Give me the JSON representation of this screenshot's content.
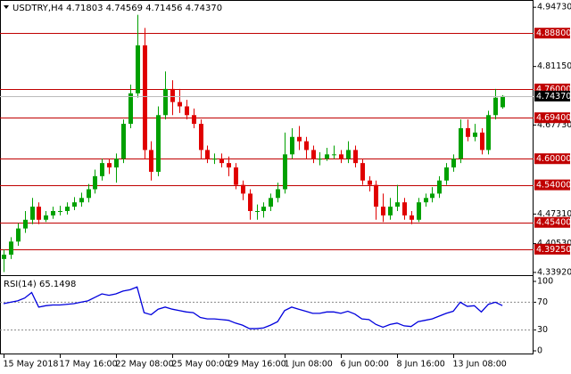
{
  "chart_data": {
    "type": "candlestick",
    "title": "USDTRY,H4  4.71803 4.74569 4.71456 4.74370",
    "categories": [
      "15 May 2018",
      null,
      null,
      null,
      null,
      null,
      null,
      null,
      "17 May 16:00",
      null,
      null,
      null,
      null,
      null,
      null,
      null,
      "22 May 08:00",
      null,
      null,
      null,
      null,
      null,
      null,
      null,
      "25 May 00:00",
      null,
      null,
      null,
      null,
      null,
      null,
      null,
      "29 May 16:00",
      null,
      null,
      null,
      null,
      null,
      null,
      null,
      "1 Jun 08:00",
      null,
      null,
      null,
      null,
      null,
      null,
      null,
      "6 Jun 00:00",
      null,
      null,
      null,
      null,
      null,
      null,
      null,
      "8 Jun 16:00",
      null,
      null,
      null,
      null,
      null,
      null,
      null,
      "13 Jun 08:00",
      null,
      null,
      null,
      null,
      null,
      null,
      null
    ],
    "open": [
      4.37,
      4.38,
      4.41,
      4.44,
      4.46,
      4.49,
      4.46,
      4.47,
      4.48,
      4.48,
      4.49,
      4.5,
      4.51,
      4.53,
      4.56,
      4.59,
      4.58,
      4.6,
      4.68,
      4.75,
      4.86,
      4.62,
      4.57,
      4.7,
      4.76,
      4.73,
      4.72,
      4.7,
      4.68,
      4.62,
      4.6,
      4.6,
      4.59,
      4.58,
      4.54,
      4.52,
      4.48,
      4.48,
      4.49,
      4.51,
      4.53,
      4.61,
      4.65,
      4.64,
      4.62,
      4.6,
      4.6,
      4.61,
      4.61,
      4.6,
      4.62,
      4.59,
      4.55,
      4.54,
      4.49,
      4.47,
      4.49,
      4.5,
      4.47,
      4.46,
      4.5,
      4.51,
      4.52,
      4.55,
      4.58,
      4.6,
      4.67,
      4.65,
      4.66,
      4.62,
      4.7,
      4.71803
    ],
    "high": [
      4.392,
      4.42,
      4.452,
      4.48,
      4.51,
      4.5,
      4.48,
      4.49,
      4.492,
      4.5,
      4.512,
      4.522,
      4.542,
      4.575,
      4.6,
      4.6,
      4.612,
      4.69,
      4.77,
      4.93,
      4.9,
      4.64,
      4.72,
      4.8,
      4.78,
      4.76,
      4.735,
      4.715,
      4.69,
      4.63,
      4.612,
      4.612,
      4.605,
      4.59,
      4.55,
      4.53,
      4.495,
      4.5,
      4.52,
      4.545,
      4.66,
      4.67,
      4.675,
      4.65,
      4.63,
      4.615,
      4.625,
      4.63,
      4.62,
      4.64,
      4.63,
      4.6,
      4.56,
      4.55,
      4.52,
      4.51,
      4.54,
      4.51,
      4.48,
      4.51,
      4.52,
      4.535,
      4.56,
      4.59,
      4.61,
      4.69,
      4.69,
      4.68,
      4.67,
      4.71,
      4.76,
      4.74569
    ],
    "low": [
      4.34,
      4.37,
      4.4,
      4.43,
      4.45,
      4.45,
      4.455,
      4.462,
      4.47,
      4.472,
      4.482,
      4.49,
      4.5,
      4.52,
      4.55,
      4.565,
      4.545,
      4.59,
      4.67,
      4.74,
      4.6,
      4.55,
      4.56,
      4.69,
      4.7,
      4.705,
      4.69,
      4.67,
      4.6,
      4.59,
      4.588,
      4.58,
      4.56,
      4.53,
      4.505,
      4.46,
      4.46,
      4.465,
      4.48,
      4.5,
      4.52,
      4.6,
      4.62,
      4.6,
      4.59,
      4.585,
      4.595,
      4.6,
      4.59,
      4.59,
      4.58,
      4.54,
      4.525,
      4.46,
      4.455,
      4.46,
      4.48,
      4.46,
      4.45,
      4.455,
      4.49,
      4.5,
      4.51,
      4.54,
      4.57,
      4.59,
      4.64,
      4.64,
      4.61,
      4.61,
      4.69,
      4.71456
    ],
    "close": [
      4.38,
      4.41,
      4.44,
      4.46,
      4.49,
      4.46,
      4.47,
      4.48,
      4.48,
      4.49,
      4.5,
      4.51,
      4.53,
      4.56,
      4.59,
      4.58,
      4.6,
      4.68,
      4.75,
      4.86,
      4.62,
      4.57,
      4.7,
      4.76,
      4.73,
      4.72,
      4.7,
      4.68,
      4.62,
      4.6,
      4.6,
      4.59,
      4.58,
      4.54,
      4.52,
      4.48,
      4.48,
      4.49,
      4.51,
      4.53,
      4.61,
      4.65,
      4.64,
      4.62,
      4.6,
      4.6,
      4.61,
      4.61,
      4.6,
      4.62,
      4.59,
      4.55,
      4.54,
      4.49,
      4.47,
      4.49,
      4.5,
      4.47,
      4.46,
      4.5,
      4.51,
      4.52,
      4.55,
      4.58,
      4.6,
      4.67,
      4.65,
      4.66,
      4.62,
      4.7,
      4.74,
      4.7437
    ],
    "up_color": "#00a000",
    "down_color": "#e00000",
    "ylim": [
      4.335,
      4.964
    ],
    "yticks": [
      {
        "value": 4.9473,
        "label": "4.94730"
      },
      {
        "value": 4.8115,
        "label": "4.81150"
      },
      {
        "value": 4.6773,
        "label": "4.67730"
      },
      {
        "value": 4.4731,
        "label": "4.47310"
      },
      {
        "value": 4.4053,
        "label": "4.40530"
      },
      {
        "value": 4.3392,
        "label": "4.33920"
      }
    ],
    "levels": [
      {
        "value": 4.888,
        "label": "4.88800"
      },
      {
        "value": 4.76,
        "label": "4.76000"
      },
      {
        "value": 4.694,
        "label": "4.69400"
      },
      {
        "value": 4.6,
        "label": "4.60000"
      },
      {
        "value": 4.54,
        "label": "4.54000"
      },
      {
        "value": 4.454,
        "label": "4.45400"
      },
      {
        "value": 4.3925,
        "label": "4.39250"
      }
    ],
    "level_color": "#c00000",
    "last_price": {
      "value": 4.7437,
      "label": "4.74370"
    },
    "rsi": {
      "label": "RSI(14) 65.1498",
      "values": [
        68,
        70,
        72,
        76,
        84,
        63,
        65,
        66,
        66,
        67,
        68,
        70,
        72,
        77,
        82,
        80,
        82,
        86,
        88,
        92,
        55,
        52,
        60,
        63,
        60,
        58,
        56,
        55,
        48,
        46,
        46,
        45,
        44,
        40,
        37,
        32,
        32,
        33,
        37,
        42,
        58,
        63,
        60,
        57,
        54,
        54,
        56,
        56,
        54,
        57,
        53,
        46,
        45,
        38,
        34,
        38,
        40,
        36,
        35,
        42,
        44,
        46,
        50,
        54,
        57,
        70,
        64,
        65,
        56,
        67,
        70,
        65.1498
      ],
      "color": "#0000dd",
      "ylim": [
        0,
        100
      ],
      "yticks": [
        100,
        70,
        30,
        0
      ],
      "dashed_grid": true
    }
  }
}
